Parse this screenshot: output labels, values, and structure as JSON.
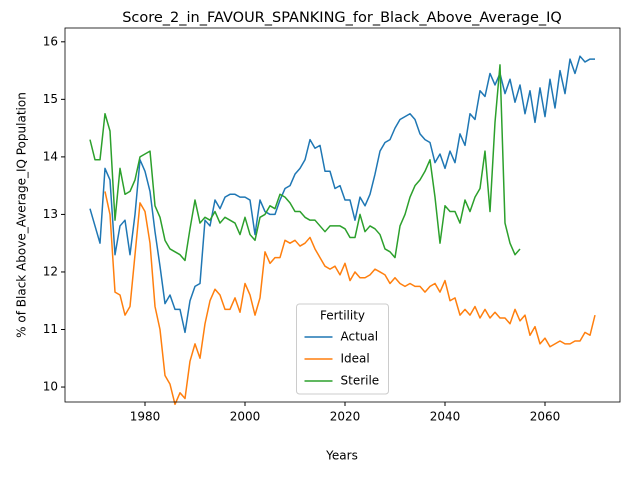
{
  "chart_data": {
    "type": "line",
    "title": "Score_2_in_FAVOUR_SPANKING_for_Black_Above_Average_IQ",
    "xlabel": "Years",
    "ylabel": "% of Black Above_Average_IQ Population",
    "legend_title": "Fertility",
    "legend_loc": "lower center",
    "xlim": [
      1964,
      2075
    ],
    "ylim": [
      9.74,
      16.24
    ],
    "xticks": [
      1980,
      2000,
      2020,
      2040,
      2060
    ],
    "yticks": [
      10,
      11,
      12,
      13,
      14,
      15,
      16
    ],
    "x": [
      1969,
      1970,
      1971,
      1972,
      1973,
      1974,
      1975,
      1976,
      1977,
      1978,
      1979,
      1980,
      1981,
      1982,
      1983,
      1984,
      1985,
      1986,
      1987,
      1988,
      1989,
      1990,
      1991,
      1992,
      1993,
      1994,
      1995,
      1996,
      1997,
      1998,
      1999,
      2000,
      2001,
      2002,
      2003,
      2004,
      2005,
      2006,
      2007,
      2008,
      2009,
      2010,
      2011,
      2012,
      2013,
      2014,
      2015,
      2016,
      2017,
      2018,
      2019,
      2020,
      2021,
      2022,
      2023,
      2024,
      2025,
      2026,
      2027,
      2028,
      2029,
      2030,
      2031,
      2032,
      2033,
      2034,
      2035,
      2036,
      2037,
      2038,
      2039,
      2040,
      2041,
      2042,
      2043,
      2044,
      2045,
      2046,
      2047,
      2048,
      2049,
      2050,
      2051,
      2052,
      2053,
      2054,
      2055,
      2056,
      2057,
      2058,
      2059,
      2060,
      2061,
      2062,
      2063,
      2064,
      2065,
      2066,
      2067,
      2068,
      2069,
      2070
    ],
    "series": [
      {
        "name": "Actual",
        "color": "#1f77b4",
        "values": [
          13.1,
          12.8,
          12.5,
          13.8,
          13.6,
          12.3,
          12.8,
          12.9,
          12.3,
          13.0,
          13.95,
          13.75,
          13.4,
          12.7,
          12.1,
          11.45,
          11.6,
          11.35,
          11.35,
          10.95,
          11.5,
          11.75,
          11.8,
          12.9,
          12.8,
          13.25,
          13.1,
          13.3,
          13.35,
          13.35,
          13.3,
          13.3,
          13.25,
          12.65,
          13.25,
          13.05,
          13.0,
          13.0,
          13.25,
          13.45,
          13.5,
          13.7,
          13.8,
          13.95,
          14.3,
          14.15,
          14.2,
          13.75,
          13.75,
          13.45,
          13.5,
          13.25,
          13.25,
          12.9,
          13.3,
          13.15,
          13.35,
          13.7,
          14.1,
          14.25,
          14.3,
          14.5,
          14.65,
          14.7,
          14.75,
          14.65,
          14.4,
          14.3,
          14.25,
          13.9,
          14.05,
          13.8,
          14.1,
          13.9,
          14.4,
          14.2,
          14.75,
          14.65,
          15.15,
          15.05,
          15.45,
          15.25,
          15.45,
          15.1,
          15.35,
          14.95,
          15.25,
          14.75,
          15.15,
          14.6,
          15.2,
          14.7,
          15.35,
          14.85,
          15.5,
          15.1,
          15.7,
          15.45,
          15.75,
          15.65,
          15.7,
          15.7
        ]
      },
      {
        "name": "Ideal",
        "color": "#ff7f0e",
        "values": [
          null,
          null,
          null,
          13.4,
          13.0,
          11.65,
          11.6,
          11.25,
          11.4,
          12.3,
          13.2,
          13.05,
          12.5,
          11.4,
          11.0,
          10.2,
          10.05,
          9.7,
          9.9,
          9.8,
          10.45,
          10.75,
          10.5,
          11.1,
          11.5,
          11.7,
          11.6,
          11.35,
          11.35,
          11.55,
          11.3,
          11.8,
          11.6,
          11.25,
          11.55,
          12.35,
          12.15,
          12.25,
          12.25,
          12.55,
          12.5,
          12.55,
          12.45,
          12.5,
          12.6,
          12.4,
          12.25,
          12.1,
          12.05,
          12.1,
          11.95,
          12.15,
          11.85,
          12.0,
          11.9,
          11.9,
          11.95,
          12.05,
          12.0,
          11.95,
          11.8,
          11.9,
          11.8,
          11.75,
          11.8,
          11.75,
          11.75,
          11.65,
          11.75,
          11.8,
          11.65,
          11.85,
          11.5,
          11.55,
          11.25,
          11.35,
          11.25,
          11.4,
          11.2,
          11.35,
          11.2,
          11.3,
          11.2,
          11.2,
          11.1,
          11.35,
          11.15,
          11.25,
          10.9,
          11.05,
          10.75,
          10.85,
          10.7,
          10.75,
          10.8,
          10.75,
          10.75,
          10.8,
          10.8,
          10.95,
          10.9,
          11.25
        ]
      },
      {
        "name": "Sterile",
        "color": "#2ca02c",
        "values": [
          14.3,
          13.95,
          13.95,
          14.75,
          14.45,
          12.9,
          13.8,
          13.35,
          13.4,
          13.6,
          14.0,
          14.05,
          14.1,
          13.15,
          12.95,
          12.55,
          12.4,
          12.35,
          12.3,
          12.2,
          12.75,
          13.25,
          12.85,
          12.95,
          12.9,
          13.05,
          12.85,
          12.95,
          12.9,
          12.85,
          12.65,
          12.95,
          12.65,
          12.55,
          12.95,
          13.0,
          13.15,
          13.1,
          13.35,
          13.3,
          13.2,
          13.05,
          13.05,
          12.95,
          12.9,
          12.9,
          12.8,
          12.7,
          12.8,
          12.8,
          12.8,
          12.75,
          12.6,
          12.6,
          13.0,
          12.7,
          12.8,
          12.75,
          12.65,
          12.4,
          12.35,
          12.25,
          12.8,
          13.0,
          13.3,
          13.5,
          13.6,
          13.75,
          13.95,
          13.3,
          12.5,
          13.15,
          13.05,
          13.05,
          12.85,
          13.25,
          13.05,
          13.3,
          13.45,
          14.1,
          13.05,
          14.6,
          15.6,
          12.85,
          12.5,
          12.3,
          12.4,
          null,
          null,
          null,
          null,
          null,
          null,
          null,
          null,
          null,
          null,
          null,
          null,
          null,
          null,
          null
        ]
      }
    ]
  }
}
